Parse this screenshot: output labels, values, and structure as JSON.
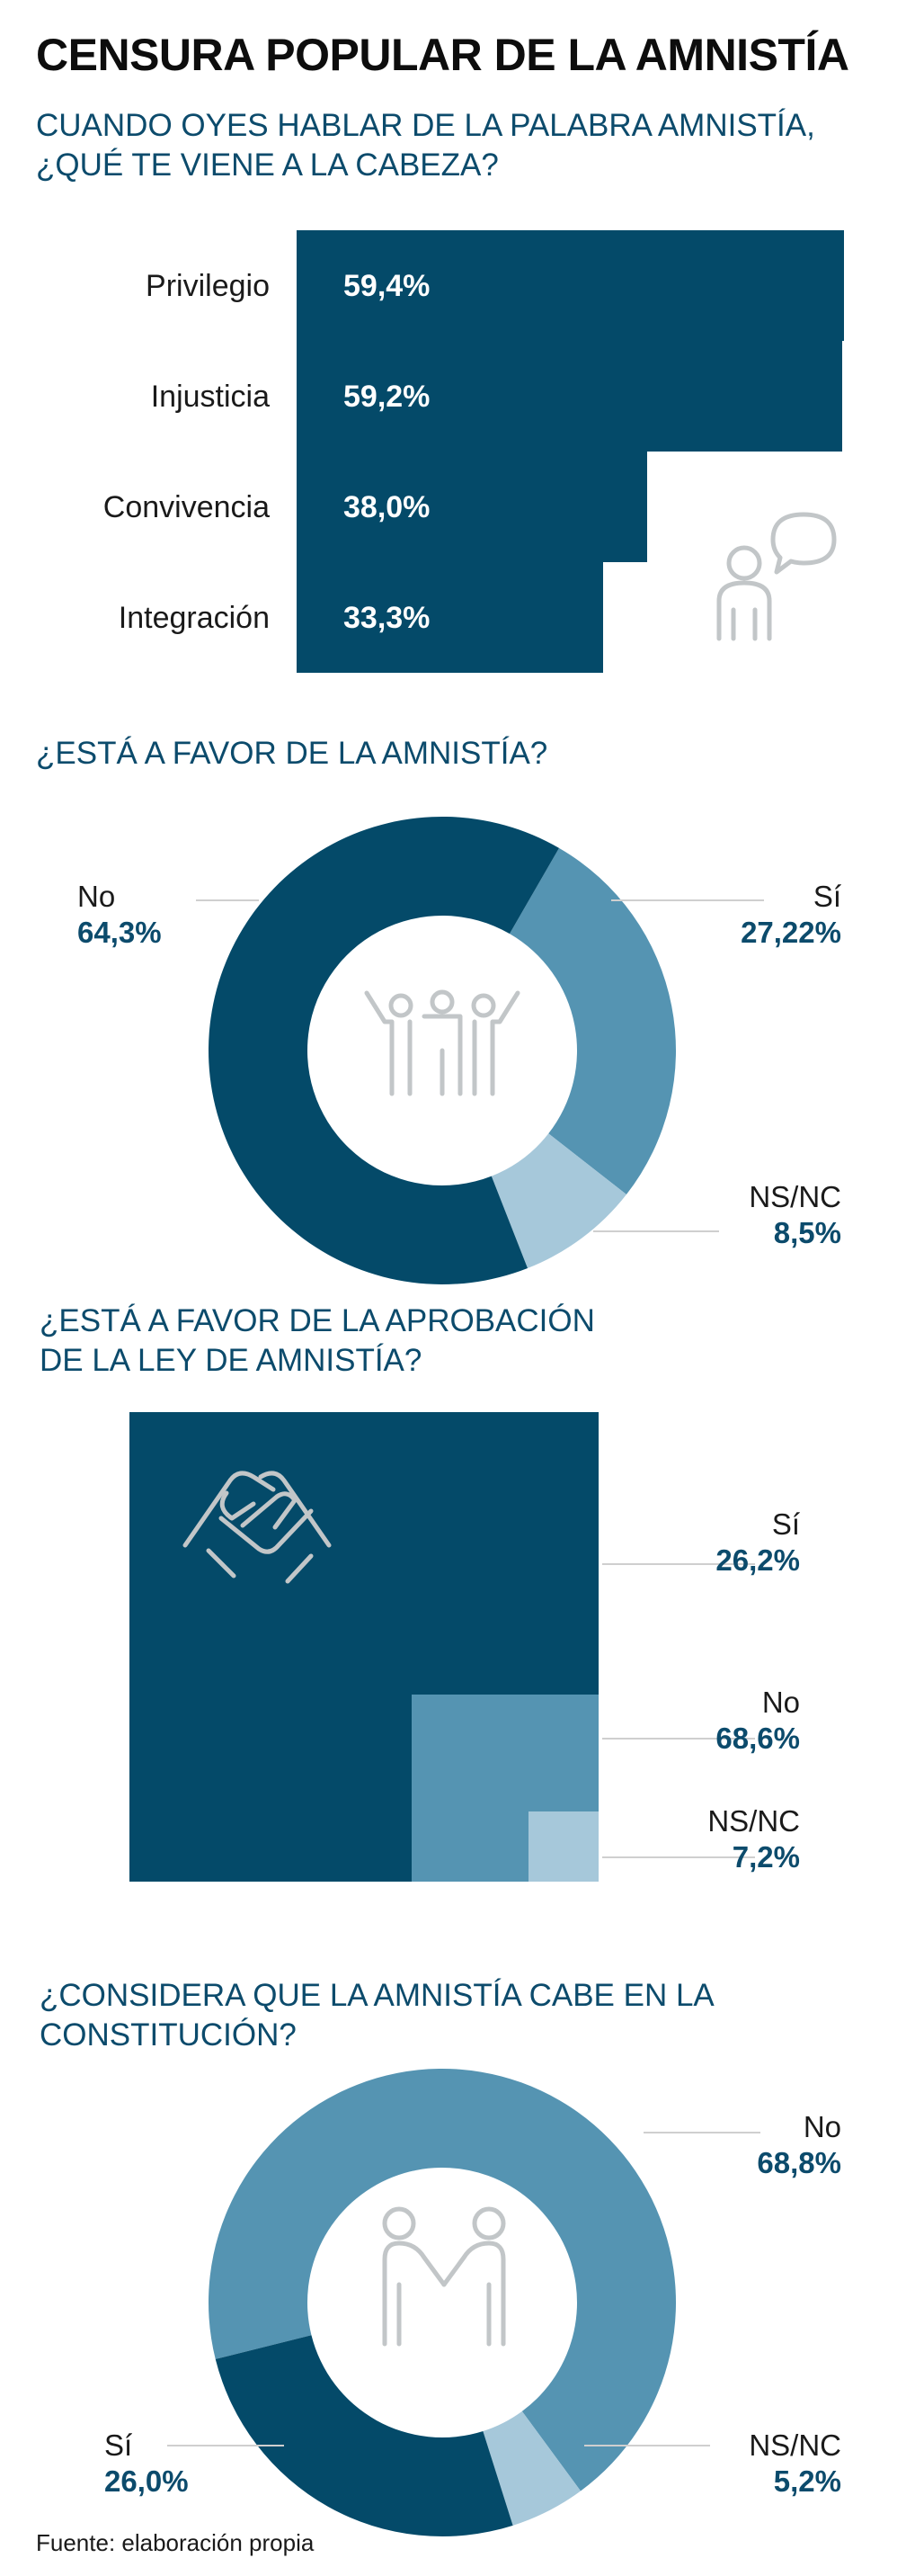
{
  "title": "CENSURA POPULAR DE LA AMNISTÍA",
  "source": "Fuente: elaboración propia",
  "colors": {
    "dark": "#044a69",
    "medium": "#5594b2",
    "light": "#a6c8da",
    "icon": "#c2c6c8"
  },
  "chart_data": [
    {
      "type": "bar",
      "title_line1": "CUANDO OYES HABLAR DE LA PALABRA AMNISTÍA,",
      "title_line2": "¿QUÉ TE VIENE A LA CABEZA?",
      "categories": [
        "Privilegio",
        "Injusticia",
        "Convivencia",
        "Integración"
      ],
      "values": [
        59.4,
        59.2,
        38.0,
        33.3
      ],
      "labels": [
        "59,4%",
        "59,2%",
        "38,0%",
        "33,3%"
      ],
      "icon": "speech-person-icon"
    },
    {
      "type": "pie",
      "donut": true,
      "title_line1": "¿ESTÁ A FAVOR DE LA AMNISTÍA?",
      "slices": [
        {
          "name": "No",
          "value": 64.3,
          "label": "64,3%",
          "color": "#044a69"
        },
        {
          "name": "Sí",
          "value": 27.22,
          "label": "27,22%",
          "color": "#5594b2"
        },
        {
          "name": "NS/NC",
          "value": 8.5,
          "label": "8,5%",
          "color": "#a6c8da"
        }
      ],
      "icon": "group-people-icon"
    },
    {
      "type": "area",
      "title_line1": "¿ESTÁ A FAVOR DE LA APROBACIÓN",
      "title_line2": "DE LA LEY DE AMNISTÍA?",
      "items": [
        {
          "name": "Sí",
          "value": 26.2,
          "label": "26,2%"
        },
        {
          "name": "No",
          "value": 68.6,
          "label": "68,6%"
        },
        {
          "name": "NS/NC",
          "value": 7.2,
          "label": "7,2%"
        }
      ],
      "icon": "clasped-hands-icon"
    },
    {
      "type": "pie",
      "donut": true,
      "title_line1": "¿CONSIDERA QUE LA AMNISTÍA CABE EN LA",
      "title_line2": "CONSTITUCIÓN?",
      "slices": [
        {
          "name": "No",
          "value": 68.8,
          "label": "68,8%",
          "color": "#5594b2"
        },
        {
          "name": "NS/NC",
          "value": 5.2,
          "label": "5,2%",
          "color": "#a6c8da"
        },
        {
          "name": "Sí",
          "value": 26.0,
          "label": "26,0%",
          "color": "#044a69"
        }
      ],
      "icon": "handshake-icon"
    }
  ]
}
